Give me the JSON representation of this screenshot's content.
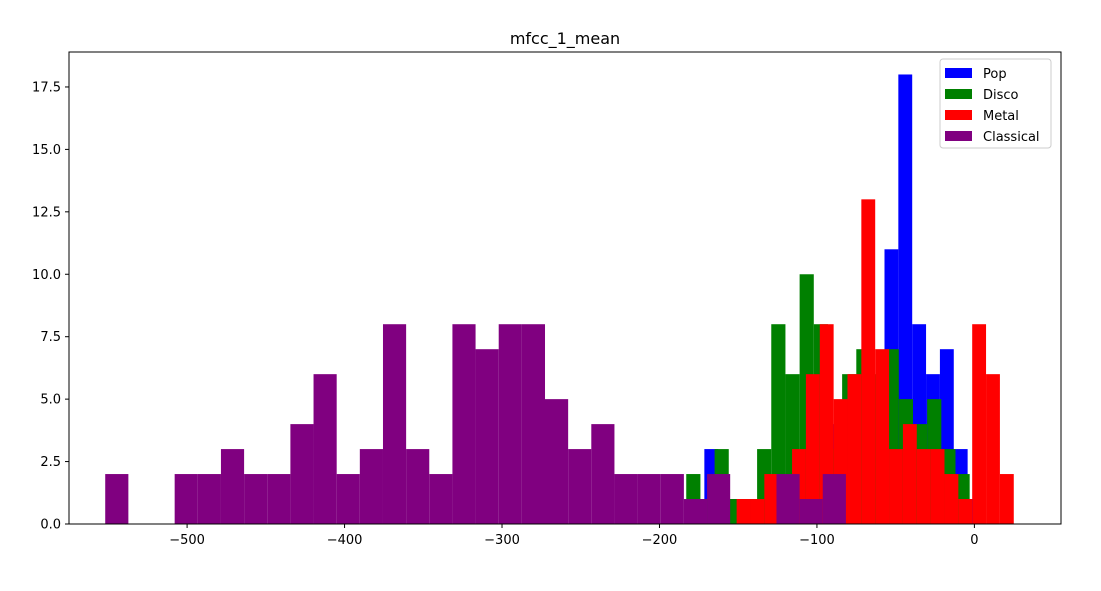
{
  "chart_data": {
    "type": "bar",
    "title": "mfcc_1_mean",
    "xlabel": "",
    "ylabel": "",
    "xlim": [
      -575,
      55
    ],
    "ylim": [
      0,
      18.9
    ],
    "xticks": [
      -500,
      -400,
      -300,
      -200,
      -100,
      0
    ],
    "xtick_labels": [
      "−500",
      "−400",
      "−300",
      "−200",
      "−100",
      "0"
    ],
    "yticks": [
      0,
      2.5,
      5,
      7.5,
      10,
      12.5,
      15,
      17.5
    ],
    "ytick_labels": [
      "0.0",
      "2.5",
      "5.0",
      "7.5",
      "10.0",
      "12.5",
      "15.0",
      "17.5"
    ],
    "grid": false,
    "legend": "top-right",
    "series": [
      {
        "name": "Pop",
        "color": "#0000ff",
        "bins": [
          [
            -171.5,
            -162.7,
            3
          ],
          [
            -162.7,
            -153.9,
            1
          ],
          [
            -153.9,
            -145.1,
            1
          ],
          [
            -145.1,
            -136.3,
            1
          ],
          [
            -136.3,
            -127.5,
            0
          ],
          [
            -127.5,
            -118.7,
            2
          ],
          [
            -118.7,
            -109.9,
            1
          ],
          [
            -109.9,
            -101.1,
            3
          ],
          [
            -101.1,
            -92.3,
            5
          ],
          [
            -92.3,
            -83.5,
            4
          ],
          [
            -83.5,
            -74.7,
            5
          ],
          [
            -74.7,
            -65.9,
            6
          ],
          [
            -65.9,
            -57.1,
            3
          ],
          [
            -57.1,
            -48.3,
            11
          ],
          [
            -48.3,
            -39.5,
            18
          ],
          [
            -39.5,
            -30.7,
            8
          ],
          [
            -30.7,
            -21.9,
            6
          ],
          [
            -21.9,
            -13.1,
            7
          ],
          [
            -13.1,
            -4.3,
            3
          ],
          [
            -4.3,
            4.5,
            1
          ]
        ]
      },
      {
        "name": "Disco",
        "color": "#008000",
        "bins": [
          [
            -183.0,
            -174.0,
            2
          ],
          [
            -174.0,
            -165.0,
            1
          ],
          [
            -165.0,
            -156.0,
            3
          ],
          [
            -156.0,
            -147.0,
            1
          ],
          [
            -147.0,
            -138.0,
            1
          ],
          [
            -138.0,
            -129.0,
            3
          ],
          [
            -129.0,
            -120.0,
            8
          ],
          [
            -120.0,
            -111.0,
            6
          ],
          [
            -111.0,
            -102.0,
            10
          ],
          [
            -102.0,
            -93.0,
            8
          ],
          [
            -93.0,
            -84.0,
            3
          ],
          [
            -84.0,
            -75.0,
            6
          ],
          [
            -75.0,
            -66.0,
            7
          ],
          [
            -66.0,
            -57.0,
            6
          ],
          [
            -57.0,
            -48.0,
            7
          ],
          [
            -48.0,
            -39.0,
            5
          ],
          [
            -39.0,
            -30.0,
            4
          ],
          [
            -30.0,
            -21.0,
            5
          ],
          [
            -21.0,
            -12.0,
            3
          ],
          [
            -12.0,
            -3.0,
            2
          ]
        ]
      },
      {
        "name": "Metal",
        "color": "#ff0000",
        "bins": [
          [
            -151.0,
            -142.2,
            1
          ],
          [
            -142.2,
            -133.4,
            1
          ],
          [
            -133.4,
            -124.6,
            2
          ],
          [
            -124.6,
            -115.8,
            1
          ],
          [
            -115.8,
            -107.0,
            3
          ],
          [
            -107.0,
            -98.2,
            6
          ],
          [
            -98.2,
            -89.4,
            8
          ],
          [
            -89.4,
            -80.6,
            5
          ],
          [
            -80.6,
            -71.8,
            6
          ],
          [
            -71.8,
            -63.0,
            13
          ],
          [
            -63.0,
            -54.2,
            7
          ],
          [
            -54.2,
            -45.4,
            3
          ],
          [
            -45.4,
            -36.6,
            4
          ],
          [
            -36.6,
            -27.8,
            3
          ],
          [
            -27.8,
            -19.0,
            3
          ],
          [
            -19.0,
            -10.2,
            2
          ],
          [
            -10.2,
            -1.4,
            1
          ],
          [
            -1.4,
            7.4,
            8
          ],
          [
            7.4,
            16.2,
            6
          ],
          [
            16.2,
            25.0,
            2
          ]
        ]
      },
      {
        "name": "Classical",
        "color": "#800080",
        "bins": [
          [
            -552.0,
            -537.3,
            2
          ],
          [
            -537.3,
            -522.6,
            0
          ],
          [
            -522.6,
            -507.9,
            0
          ],
          [
            -507.9,
            -493.2,
            2
          ],
          [
            -493.2,
            -478.5,
            2
          ],
          [
            -478.5,
            -463.8,
            3
          ],
          [
            -463.8,
            -449.1,
            2
          ],
          [
            -449.1,
            -434.4,
            2
          ],
          [
            -434.4,
            -419.7,
            4
          ],
          [
            -419.7,
            -405.0,
            6
          ],
          [
            -405.0,
            -390.3,
            2
          ],
          [
            -390.3,
            -375.6,
            3
          ],
          [
            -375.6,
            -360.9,
            8
          ],
          [
            -360.9,
            -346.2,
            3
          ],
          [
            -346.2,
            -331.5,
            2
          ],
          [
            -331.5,
            -316.8,
            8
          ],
          [
            -316.8,
            -302.1,
            7
          ],
          [
            -302.1,
            -287.4,
            8
          ],
          [
            -287.4,
            -272.7,
            8
          ],
          [
            -272.7,
            -258.0,
            5
          ],
          [
            -258.0,
            -243.3,
            3
          ],
          [
            -243.3,
            -228.6,
            4
          ],
          [
            -228.6,
            -213.9,
            2
          ],
          [
            -213.9,
            -199.2,
            2
          ],
          [
            -199.2,
            -184.5,
            2
          ],
          [
            -184.5,
            -169.8,
            1
          ],
          [
            -169.8,
            -155.1,
            2
          ],
          [
            -155.1,
            -140.4,
            0
          ],
          [
            -140.4,
            -125.7,
            0
          ],
          [
            -125.7,
            -111.0,
            2
          ],
          [
            -111.0,
            -96.3,
            1
          ],
          [
            -96.3,
            -81.6,
            2
          ]
        ]
      }
    ]
  }
}
